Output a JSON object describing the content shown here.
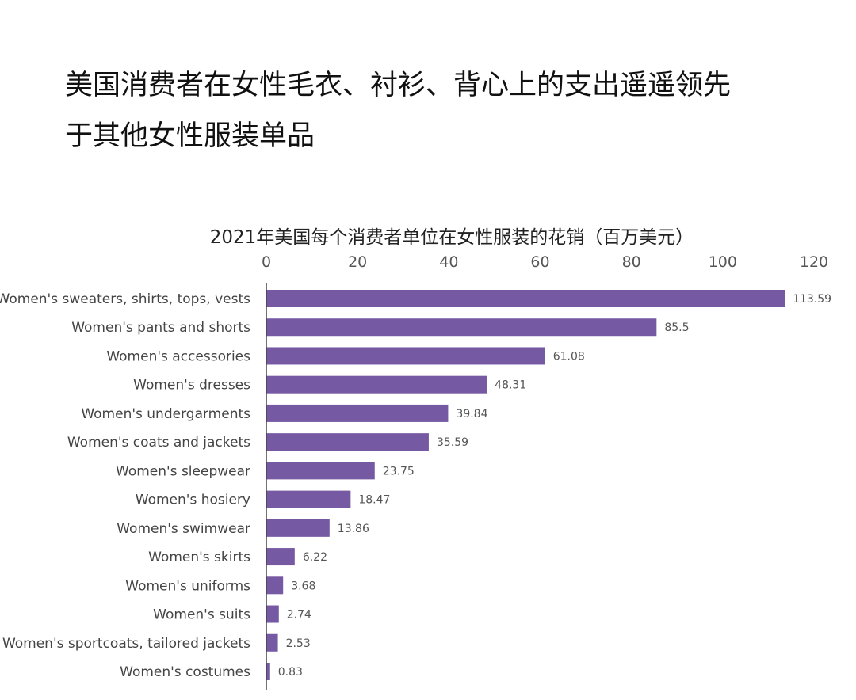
{
  "headline": {
    "line1": "美国消费者在女性毛衣、衬衫、背心上的支出遥遥领先",
    "line2": "于其他女性服装单品"
  },
  "chart_data": {
    "type": "bar",
    "orientation": "horizontal",
    "title": "2021年美国每个消费者单位在女性服装的花销（百万美元）",
    "xlim": [
      0,
      120
    ],
    "xticks": [
      0,
      20,
      40,
      60,
      80,
      100,
      120
    ],
    "xaxis_position": "top",
    "grid": false,
    "bar_color": "#7659a3",
    "categories": [
      "Women's sweaters, shirts, tops, vests",
      "Women's pants and shorts",
      "Women's accessories",
      "Women's dresses",
      "Women's undergarments",
      "Women's coats and jackets",
      "Women's sleepwear",
      "Women's hosiery",
      "Women's swimwear",
      "Women's skirts",
      "Women's uniforms",
      "Women's suits",
      "Women's sportcoats, tailored jackets",
      "Women's costumes"
    ],
    "values": [
      113.59,
      85.5,
      61.08,
      48.31,
      39.84,
      35.59,
      23.75,
      18.47,
      13.86,
      6.22,
      3.68,
      2.74,
      2.53,
      0.83
    ]
  }
}
